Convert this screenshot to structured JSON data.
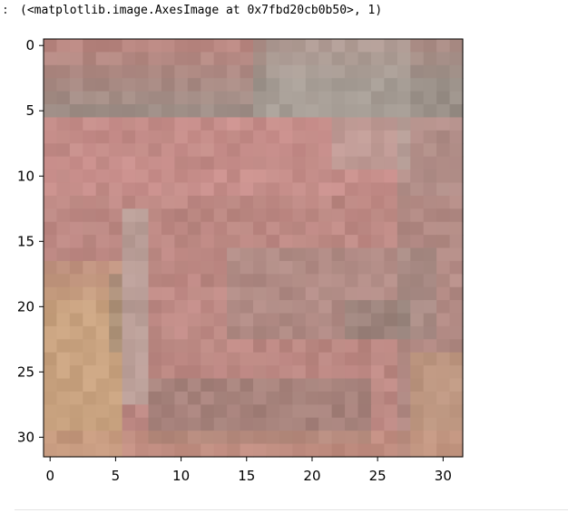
{
  "output": {
    "prompt": ":",
    "text": "(<matplotlib.image.AxesImage at 0x7fbd20cb0b50>, 1)"
  },
  "figure": {
    "image_kind": "blurry pixelated face",
    "x_ticks": [
      "0",
      "5",
      "10",
      "15",
      "20",
      "25",
      "30"
    ],
    "y_ticks": [
      "0",
      "5",
      "10",
      "15",
      "20",
      "25",
      "30"
    ]
  },
  "chart_data": {
    "type": "heatmap",
    "grid_size": [
      32,
      32
    ],
    "x_tick_values": [
      0,
      5,
      10,
      15,
      20,
      25,
      30
    ],
    "y_tick_values": [
      0,
      5,
      10,
      15,
      20,
      25,
      30
    ],
    "xlim": [
      -0.5,
      31.5
    ],
    "ylim": [
      31.5,
      -0.5
    ],
    "x_ticks": [
      "0",
      "5",
      "10",
      "15",
      "20",
      "25",
      "30"
    ],
    "y_ticks": [
      "0",
      "5",
      "10",
      "15",
      "20",
      "25",
      "30"
    ],
    "palette": {
      "skin": "#c2907c",
      "pink": "#c98f8c",
      "rose": "#b88680",
      "gray": "#9a9088",
      "light_gray": "#b8b0a8",
      "dark_gray": "#7e776e",
      "tan": "#c8a27f",
      "dark_red": "#8a6b62"
    }
  }
}
